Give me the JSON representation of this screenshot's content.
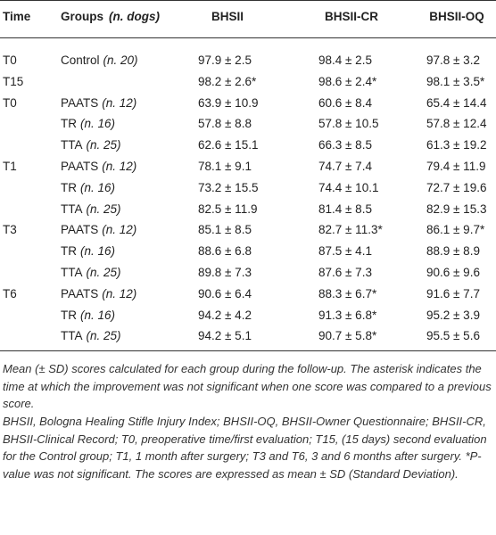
{
  "table": {
    "header": [
      "Time",
      "Groups",
      "(n. dogs)",
      "BHSII",
      "BHSII-CR",
      "BHSII-OQ"
    ],
    "rows": [
      [
        "T0",
        "Control",
        "(n. 20)",
        "97.9 ± 2.5",
        "98.4 ± 2.5",
        "97.8 ± 3.2"
      ],
      [
        "T15",
        null,
        null,
        "98.2 ± 2.6*",
        "98.6 ± 2.4*",
        "98.1 ± 3.5*"
      ],
      [
        "T0",
        "PAATS",
        "(n. 12)",
        "63.9 ± 10.9",
        "60.6 ± 8.4",
        "65.4 ± 14.4"
      ],
      [
        null,
        "TR",
        "(n. 16)",
        "57.8 ± 8.8",
        "57.8 ± 10.5",
        "57.8 ± 12.4"
      ],
      [
        null,
        "TTA",
        "(n. 25)",
        "62.6 ± 15.1",
        "66.3 ± 8.5",
        "61.3 ± 19.2"
      ],
      [
        "T1",
        "PAATS",
        "(n. 12)",
        "78.1 ± 9.1",
        "74.7 ± 7.4",
        "79.4 ± 11.9"
      ],
      [
        null,
        "TR",
        "(n. 16)",
        "73.2 ± 15.5",
        "74.4 ± 10.1",
        "72.7 ± 19.6"
      ],
      [
        null,
        "TTA",
        "(n. 25)",
        "82.5 ± 11.9",
        "81.4 ± 8.5",
        "82.9 ± 15.3"
      ],
      [
        "T3",
        "PAATS",
        "(n. 12)",
        "85.1 ± 8.5",
        "82.7 ± 11.3*",
        "86.1 ± 9.7*"
      ],
      [
        null,
        "TR",
        "(n. 16)",
        "88.6 ± 6.8",
        "87.5 ± 4.1",
        "88.9 ± 8.9"
      ],
      [
        null,
        "TTA",
        "(n. 25)",
        "89.8 ± 7.3",
        "87.6 ± 7.3",
        "90.6 ± 9.6"
      ],
      [
        "T6",
        "PAATS",
        "(n. 12)",
        "90.6 ± 6.4",
        "88.3 ± 6.7*",
        "91.6 ± 7.7"
      ],
      [
        null,
        "TR",
        "(n. 16)",
        "94.2 ± 4.2",
        "91.3 ± 6.8*",
        "95.2 ± 3.9"
      ],
      [
        null,
        "TTA",
        "(n. 25)",
        "94.2 ± 5.1",
        "90.7 ± 5.8*",
        "95.5 ± 5.6"
      ]
    ],
    "notes": [
      "Mean (± SD) scores calculated for each group during the follow-up. The asterisk indicates the time at which the improvement was not significant when one score was compared to a previous score.",
      "BHSII, Bologna Healing Stifle Injury Index; BHSII-OQ, BHSII-Owner Questionnaire; BHSII-CR, BHSII-Clinical Record; T0, preoperative time/first evaluation; T15, (15 days) second evaluation for the Control group; T1, 1 month after surgery; T3 and T6, 3 and 6 months after surgery. *P-value was not significant. The scores are expressed as mean ± SD (Standard Deviation)."
    ]
  }
}
